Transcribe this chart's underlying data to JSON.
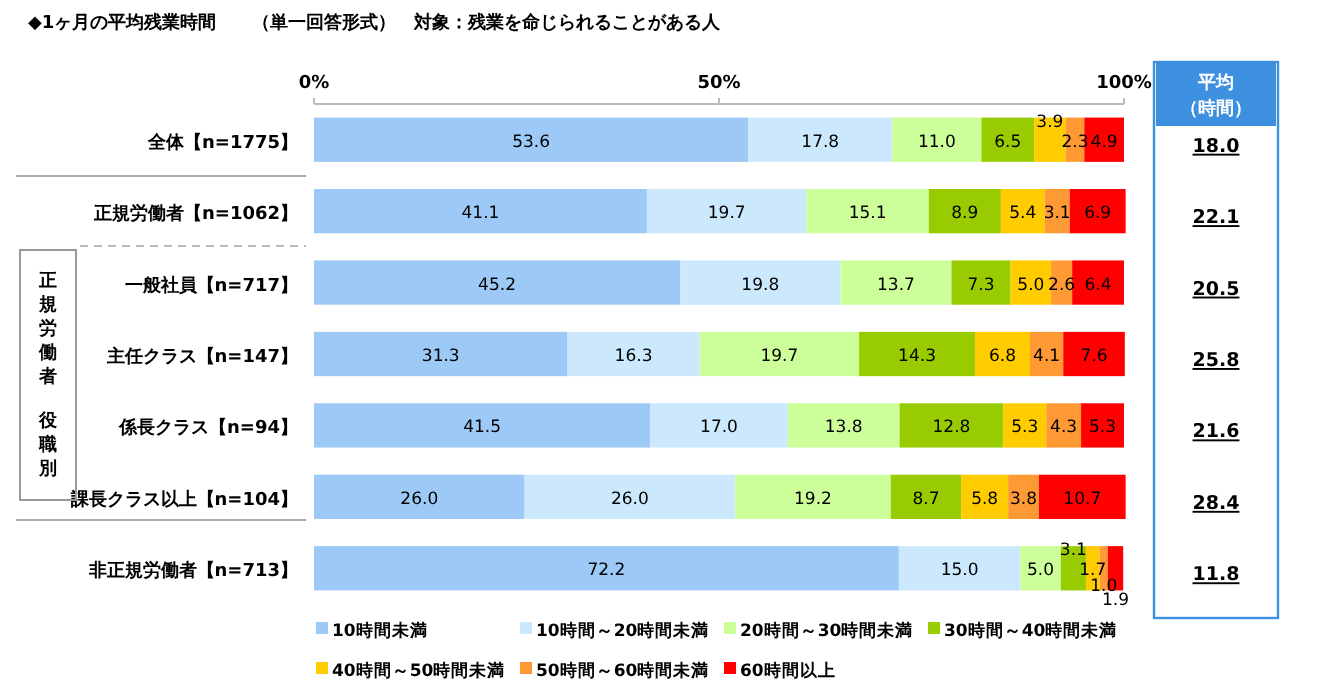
{
  "chart_data": {
    "type": "bar",
    "orientation": "horizontal",
    "stacked": true,
    "title": "◆1ヶ月の平均残業時間　　（単一回答形式）　対象：残業を命じられることがある人",
    "categories": [
      "全体【n=1775】",
      "正規労働者【n=1062】",
      "一般社員【n=717】",
      "主任クラス【n=147】",
      "係長クラス【n=94】",
      "課長クラス以上【n=104】",
      "非正規労働者【n=713】"
    ],
    "series": [
      {
        "name": "10時間未満",
        "color": "#9dc9f7",
        "values": [
          53.6,
          41.1,
          45.2,
          31.3,
          41.5,
          26.0,
          72.2
        ],
        "value_labels": [
          "53.6",
          "41.1",
          "45.2",
          "31.3",
          "41.5",
          "26.0",
          "72.2"
        ]
      },
      {
        "name": "10時間～20時間未満",
        "color": "#cce8fc",
        "values": [
          17.8,
          19.7,
          19.8,
          16.3,
          17.0,
          26.0,
          15.0
        ],
        "value_labels": [
          "17.8",
          "19.7",
          "19.8",
          "16.3",
          "17.0",
          "26.0",
          "15.0"
        ]
      },
      {
        "name": "20時間～30時間未満",
        "color": "#ccff99",
        "values": [
          11.0,
          15.1,
          13.7,
          19.7,
          13.8,
          19.2,
          5.0
        ],
        "value_labels": [
          "11.0",
          "15.1",
          "13.7",
          "19.7",
          "13.8",
          "19.2",
          "5.0"
        ]
      },
      {
        "name": "30時間～40時間未満",
        "color": "#99cc00",
        "values": [
          6.5,
          8.9,
          7.3,
          14.3,
          12.8,
          8.7,
          3.1
        ],
        "value_labels": [
          "6.5",
          "8.9",
          "7.3",
          "14.3",
          "12.8",
          "8.7",
          "3.1"
        ]
      },
      {
        "name": "40時間～50時間未満",
        "color": "#ffcc00",
        "values": [
          3.9,
          5.4,
          5.0,
          6.8,
          5.3,
          5.8,
          1.7
        ],
        "value_labels": [
          "3.9",
          "5.4",
          "5.0",
          "6.8",
          "5.3",
          "5.8",
          "1.7"
        ]
      },
      {
        "name": "50時間～60時間未満",
        "color": "#ff9933",
        "values": [
          2.3,
          3.1,
          2.6,
          4.1,
          4.3,
          3.8,
          1.0
        ],
        "value_labels": [
          "2.3",
          "3.1",
          "2.6",
          "4.1",
          "4.3",
          "3.8",
          "1.0"
        ]
      },
      {
        "name": "60時間以上",
        "color": "#ff0000",
        "values": [
          4.9,
          6.9,
          6.4,
          7.6,
          5.3,
          10.7,
          1.9
        ],
        "value_labels": [
          "4.9",
          "6.9",
          "6.4",
          "7.6",
          "5.3",
          "10.7",
          "1.9"
        ]
      }
    ],
    "xlim": [
      0,
      100
    ],
    "xticks": [
      {
        "value": 0,
        "label": "0%"
      },
      {
        "value": 50,
        "label": "50%"
      },
      {
        "value": 100,
        "label": "100%"
      }
    ],
    "legend": "bottom",
    "annotations": [
      "平均（時間）",
      "正規労働者役職別",
      "18.0",
      "22.1",
      "20.5",
      "25.8",
      "21.6",
      "28.4",
      "11.8"
    ]
  }
}
